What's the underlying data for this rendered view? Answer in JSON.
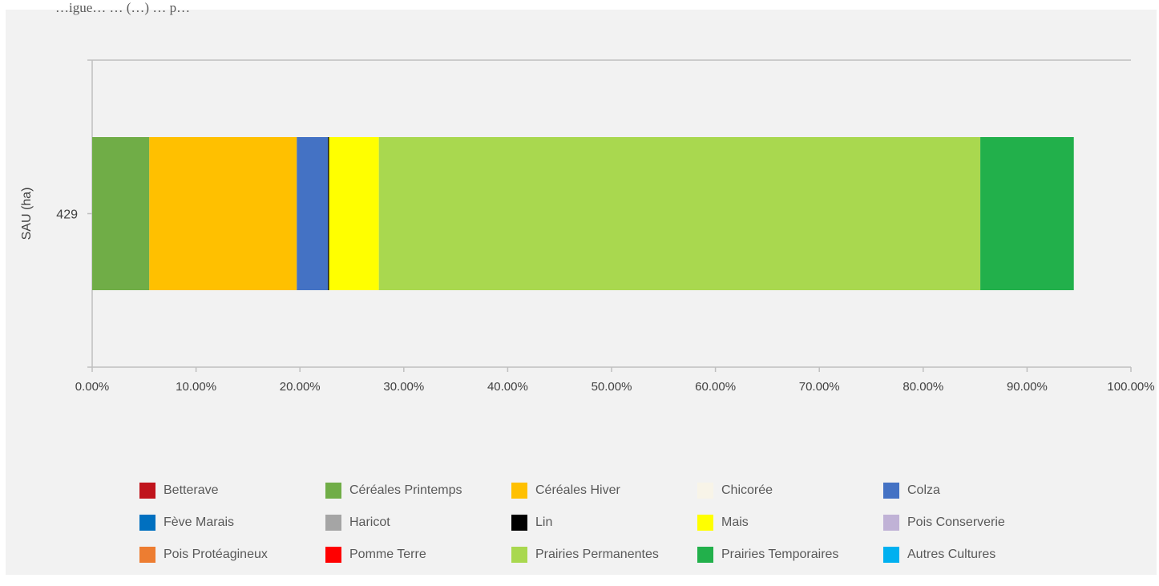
{
  "header": {
    "cut_title": "…igue… … (…) … p…"
  },
  "chart_data": {
    "type": "bar",
    "orientation": "horizontal",
    "stacked": true,
    "ylabel": "SAU (ha)",
    "categories": [
      "429"
    ],
    "xlim": [
      0,
      100
    ],
    "x_ticks": [
      "0.00%",
      "10.00%",
      "20.00%",
      "30.00%",
      "40.00%",
      "50.00%",
      "60.00%",
      "70.00%",
      "80.00%",
      "90.00%",
      "100.00%"
    ],
    "grid": false,
    "legend_position": "bottom",
    "series": [
      {
        "name": "Betterave",
        "values": [
          0
        ],
        "color": "#c0141c"
      },
      {
        "name": "Céréales Printemps",
        "values": [
          5.5
        ],
        "color": "#70ad47"
      },
      {
        "name": "Céréales Hiver",
        "values": [
          14.2
        ],
        "color": "#ffc000"
      },
      {
        "name": "Chicorée",
        "values": [
          0
        ],
        "color": "#f8f4e8"
      },
      {
        "name": "Colza",
        "values": [
          3.0
        ],
        "color": "#4472c4"
      },
      {
        "name": "Fève Marais",
        "values": [
          0
        ],
        "color": "#0070c0"
      },
      {
        "name": " Haricot",
        "values": [
          0
        ],
        "color": "#a5a5a5"
      },
      {
        "name": "Lin",
        "values": [
          0.1
        ],
        "color": "#000000"
      },
      {
        "name": "Mais",
        "values": [
          4.8
        ],
        "color": "#ffff00"
      },
      {
        "name": "Pois Conserverie",
        "values": [
          0
        ],
        "color": "#c0b2d6"
      },
      {
        "name": "Pois Protéagineux",
        "values": [
          0
        ],
        "color": "#ed7d31"
      },
      {
        "name": "Pomme Terre",
        "values": [
          0
        ],
        "color": "#ff0000"
      },
      {
        "name": "Prairies Permanentes",
        "values": [
          57.9
        ],
        "color": "#a9d84f"
      },
      {
        "name": "Prairies Temporaires",
        "values": [
          9.0
        ],
        "color": "#22b04b"
      },
      {
        "name": "Autres Cultures",
        "values": [
          0
        ],
        "color": "#00b0f0"
      }
    ]
  }
}
